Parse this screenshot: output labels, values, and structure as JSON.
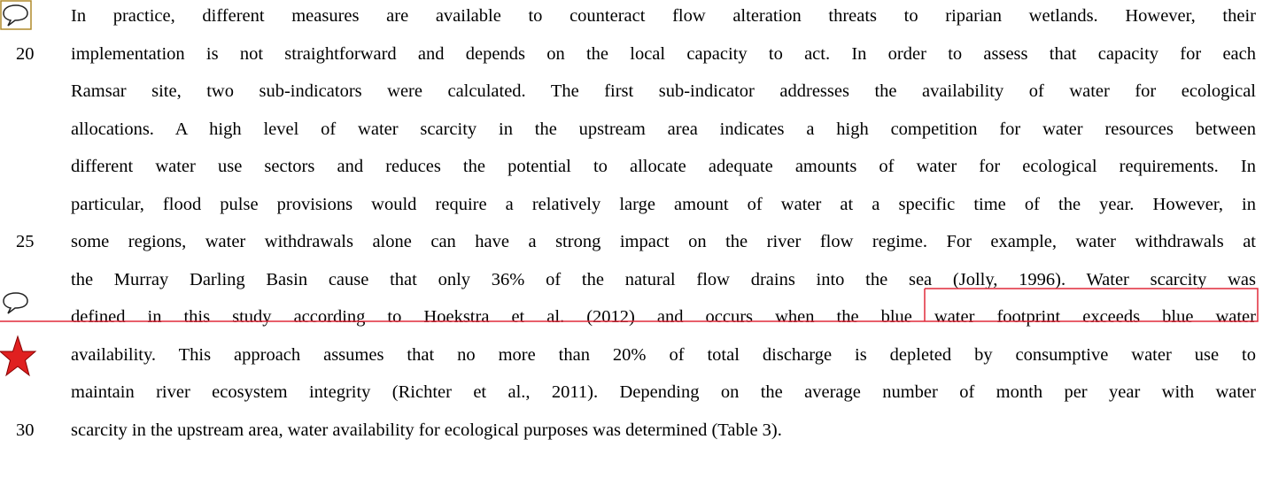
{
  "lines": [
    "In practice, different measures are available to counteract flow alteration threats to riparian wetlands. However, their",
    "implementation is not straightforward and depends on the local capacity to act. In order to assess that capacity for each",
    "Ramsar site, two sub-indicators were calculated. The first sub-indicator addresses the availability of water for ecological",
    "allocations. A high level of water scarcity in the upstream area indicates a high competition for water resources between",
    "different water use sectors and reduces the potential to allocate adequate amounts of water for ecological requirements. In",
    "particular, flood pulse provisions would require a relatively large amount of water at a specific time of the year. However, in",
    "some regions, water withdrawals alone can have a strong impact on the river flow regime. For example, water withdrawals at",
    "the Murray Darling Basin cause that only 36% of the natural flow drains into the sea (Jolly, 1996). Water scarcity was",
    "defined in this study according to Hoekstra et al. (2012) and occurs when the blue water footprint exceeds blue water",
    "availability. This approach assumes that no more than 20% of total discharge is depleted by consumptive water use to",
    "maintain river ecosystem integrity (Richter et al., 2011). Depending on the average number of month per year with water",
    "scarcity in the upstream area, water availability for ecological purposes was determined (Table 3)."
  ],
  "line_numbers": [
    "20",
    "25",
    "30"
  ]
}
